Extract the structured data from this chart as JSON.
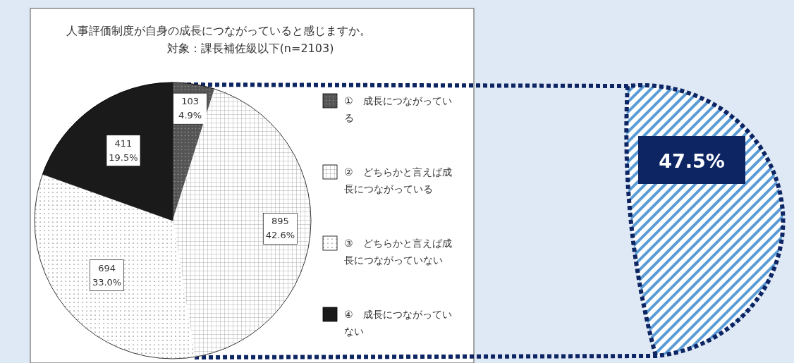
{
  "chart_data": {
    "type": "pie",
    "title": "人事評価制度が自身の成長につながっていると感じますか。",
    "subtitle": "対象：課長補佐級以下(n=2103)",
    "categories": [
      "①　成長につながっている",
      "②　どちらかと言えば成長につながっている",
      "③　どちらかと言えば成長につながっていない",
      "④　成長につながっていない"
    ],
    "values": [
      103,
      895,
      694,
      411
    ],
    "value_labels": [
      "103\n4.9%",
      "895\n42.6%",
      "694\n33.0%",
      "411\n19.5%"
    ],
    "colors": [
      "#555555",
      "#ffffff",
      "#ffffff",
      "#1a1a1a"
    ],
    "legend": "right",
    "annotations": [
      "47.5%"
    ]
  }
}
